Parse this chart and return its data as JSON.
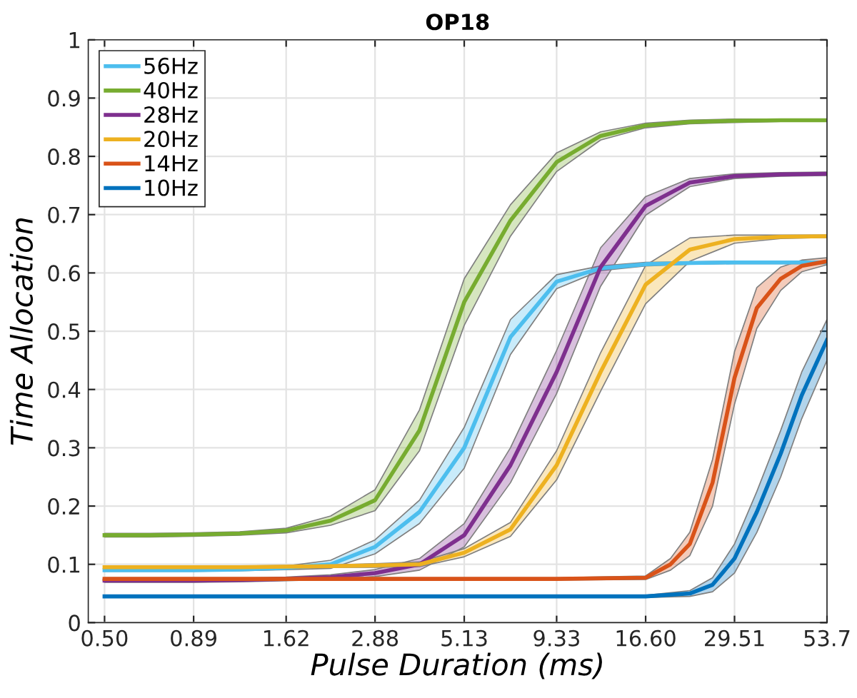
{
  "chart_data": {
    "type": "line",
    "title": "OP18",
    "xlabel": "Pulse Duration (ms)",
    "ylabel": "Time Allocation",
    "log": "x",
    "xlim": [
      0.45,
      53.7
    ],
    "ylim": [
      0,
      1
    ],
    "xticks": [
      {
        "value": 0.5,
        "label": "0.50"
      },
      0.89,
      1.62,
      2.88,
      5.13,
      9.33,
      {
        "value": 16.6,
        "label": "16.60"
      },
      29.51,
      53.7
    ],
    "yticks": [
      0,
      0.1,
      0.2,
      0.3,
      0.4,
      0.5,
      0.6,
      0.7,
      0.8,
      0.9,
      1
    ],
    "grid": true,
    "legend": "top left",
    "marker": "none",
    "line_style": "solid",
    "x": [
      0.5,
      0.67,
      0.89,
      1.2,
      1.62,
      2.16,
      2.88,
      3.84,
      5.13,
      6.92,
      9.33,
      12.4,
      16.6,
      22.1,
      29.51,
      39.8,
      53.7
    ],
    "series": [
      {
        "name": "56Hz",
        "color": "#4dbeee",
        "values": [
          0.09,
          0.09,
          0.09,
          0.091,
          0.094,
          0.1,
          0.13,
          0.19,
          0.3,
          0.49,
          0.585,
          0.608,
          0.615,
          0.617,
          0.618,
          0.618,
          0.618
        ],
        "lower": [
          0.088,
          0.088,
          0.088,
          0.089,
          0.091,
          0.093,
          0.118,
          0.17,
          0.265,
          0.46,
          0.573,
          0.604,
          0.612,
          0.615,
          0.616,
          0.616,
          0.616
        ],
        "upper": [
          0.092,
          0.092,
          0.092,
          0.093,
          0.097,
          0.107,
          0.142,
          0.21,
          0.335,
          0.52,
          0.597,
          0.612,
          0.618,
          0.619,
          0.62,
          0.62,
          0.62
        ]
      },
      {
        "name": "40Hz",
        "color": "#77ac30",
        "values": [
          0.15,
          0.15,
          0.151,
          0.153,
          0.158,
          0.175,
          0.21,
          0.33,
          0.55,
          0.69,
          0.79,
          0.835,
          0.853,
          0.859,
          0.861,
          0.862,
          0.862
        ],
        "lower": [
          0.147,
          0.147,
          0.148,
          0.15,
          0.154,
          0.167,
          0.192,
          0.295,
          0.51,
          0.663,
          0.774,
          0.828,
          0.849,
          0.856,
          0.858,
          0.86,
          0.86
        ],
        "upper": [
          0.153,
          0.153,
          0.154,
          0.156,
          0.162,
          0.183,
          0.228,
          0.365,
          0.59,
          0.717,
          0.806,
          0.842,
          0.857,
          0.862,
          0.864,
          0.864,
          0.864
        ]
      },
      {
        "name": "28Hz",
        "color": "#7e2f8e",
        "values": [
          0.072,
          0.072,
          0.072,
          0.073,
          0.075,
          0.078,
          0.085,
          0.1,
          0.15,
          0.27,
          0.43,
          0.61,
          0.715,
          0.755,
          0.766,
          0.769,
          0.77
        ],
        "lower": [
          0.069,
          0.069,
          0.069,
          0.07,
          0.072,
          0.074,
          0.079,
          0.09,
          0.13,
          0.24,
          0.393,
          0.577,
          0.699,
          0.748,
          0.762,
          0.766,
          0.767
        ],
        "upper": [
          0.075,
          0.075,
          0.075,
          0.076,
          0.078,
          0.082,
          0.091,
          0.11,
          0.17,
          0.3,
          0.467,
          0.643,
          0.731,
          0.762,
          0.77,
          0.772,
          0.773
        ]
      },
      {
        "name": "20Hz",
        "color": "#edb120",
        "values": [
          0.095,
          0.095,
          0.095,
          0.095,
          0.096,
          0.097,
          0.098,
          0.1,
          0.12,
          0.16,
          0.27,
          0.43,
          0.58,
          0.64,
          0.658,
          0.662,
          0.663
        ],
        "lower": [
          0.093,
          0.093,
          0.093,
          0.093,
          0.094,
          0.095,
          0.095,
          0.096,
          0.113,
          0.148,
          0.245,
          0.397,
          0.547,
          0.62,
          0.651,
          0.659,
          0.661
        ],
        "upper": [
          0.097,
          0.097,
          0.097,
          0.097,
          0.098,
          0.099,
          0.101,
          0.104,
          0.127,
          0.172,
          0.295,
          0.463,
          0.613,
          0.66,
          0.665,
          0.665,
          0.665
        ]
      },
      {
        "name": "14Hz",
        "color": "#d95319",
        "x": [
          0.5,
          0.89,
          1.62,
          2.88,
          5.13,
          9.33,
          16.6,
          19.5,
          22.1,
          25.6,
          29.51,
          34.1,
          39.8,
          45.6,
          53.7
        ],
        "values": [
          0.075,
          0.075,
          0.075,
          0.075,
          0.075,
          0.075,
          0.077,
          0.1,
          0.135,
          0.24,
          0.42,
          0.54,
          0.59,
          0.612,
          0.62
        ],
        "lower": [
          0.073,
          0.073,
          0.073,
          0.073,
          0.073,
          0.073,
          0.074,
          0.09,
          0.115,
          0.2,
          0.375,
          0.505,
          0.57,
          0.602,
          0.614
        ],
        "upper": [
          0.077,
          0.077,
          0.077,
          0.077,
          0.077,
          0.077,
          0.08,
          0.11,
          0.155,
          0.28,
          0.465,
          0.575,
          0.61,
          0.622,
          0.626
        ]
      },
      {
        "name": "10Hz",
        "color": "#0072bd",
        "x": [
          0.5,
          0.89,
          1.62,
          2.88,
          5.13,
          9.33,
          16.6,
          22.1,
          25.6,
          29.51,
          34.1,
          39.8,
          45.6,
          53.7
        ],
        "values": [
          0.045,
          0.045,
          0.045,
          0.045,
          0.045,
          0.045,
          0.045,
          0.05,
          0.065,
          0.11,
          0.19,
          0.29,
          0.39,
          0.485
        ],
        "lower": [
          0.043,
          0.043,
          0.043,
          0.043,
          0.043,
          0.043,
          0.043,
          0.045,
          0.053,
          0.085,
          0.155,
          0.25,
          0.35,
          0.45
        ],
        "upper": [
          0.047,
          0.047,
          0.047,
          0.047,
          0.047,
          0.047,
          0.047,
          0.055,
          0.077,
          0.135,
          0.225,
          0.33,
          0.43,
          0.52
        ]
      }
    ]
  }
}
